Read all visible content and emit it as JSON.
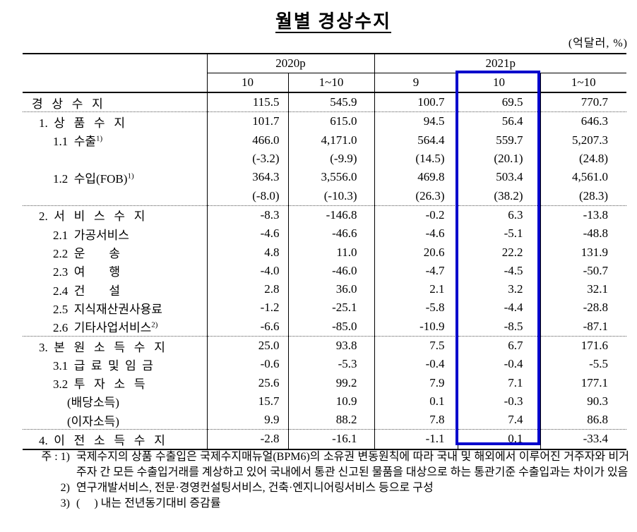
{
  "page": {
    "title": "월별 경상수지",
    "unit_label": "(억달러, %)"
  },
  "table": {
    "corner_label": "",
    "col_groups": [
      {
        "label": "2020p",
        "sub": [
          "10",
          "1~10"
        ]
      },
      {
        "label": "2021p",
        "sub": [
          "9",
          "10",
          "1~10"
        ]
      }
    ],
    "bold_value_columns": [
      0,
      3
    ],
    "highlight": {
      "group": "2021p",
      "column": "10",
      "color": "#0000cc"
    },
    "rows": [
      {
        "label": "경   상   수   지",
        "indent": 0,
        "bold": true,
        "sep": true,
        "values": [
          "115.5",
          "545.9",
          "100.7",
          "69.5",
          "770.7"
        ]
      },
      {
        "label": "1.  상   품   수   지",
        "indent": 1,
        "values": [
          "101.7",
          "615.0",
          "94.5",
          "56.4",
          "646.3"
        ]
      },
      {
        "label": "1.1  수출",
        "sup": "1)",
        "indent": 2,
        "values": [
          "466.0",
          "4,171.0",
          "564.4",
          "559.7",
          "5,207.3"
        ]
      },
      {
        "label": "",
        "indent": 2,
        "values": [
          "(-3.2)",
          "(-9.9)",
          "(14.5)",
          "(20.1)",
          "(24.8)"
        ]
      },
      {
        "label": "1.2  수입(FOB)",
        "sup": "1)",
        "indent": 2,
        "values": [
          "364.3",
          "3,556.0",
          "469.8",
          "503.4",
          "4,561.0"
        ]
      },
      {
        "label": "",
        "indent": 2,
        "sep": true,
        "values": [
          "(-8.0)",
          "(-10.3)",
          "(26.3)",
          "(38.2)",
          "(28.3)"
        ]
      },
      {
        "label": "2.  서   비   스   수   지",
        "indent": 1,
        "values": [
          "-8.3",
          "-146.8",
          "-0.2",
          "6.3",
          "-13.8"
        ]
      },
      {
        "label": "2.1  가공서비스",
        "indent": 2,
        "values": [
          "-4.6",
          "-46.6",
          "-4.6",
          "-5.1",
          "-48.8"
        ]
      },
      {
        "label": "2.2  운        송",
        "indent": 2,
        "values": [
          "4.8",
          "11.0",
          "20.6",
          "22.2",
          "131.9"
        ]
      },
      {
        "label": "2.3  여        행",
        "indent": 2,
        "values": [
          "-4.0",
          "-46.0",
          "-4.7",
          "-4.5",
          "-50.7"
        ]
      },
      {
        "label": "2.4  건        설",
        "indent": 2,
        "values": [
          "2.8",
          "36.0",
          "2.1",
          "3.2",
          "32.1"
        ]
      },
      {
        "label": "2.5  지식재산권사용료",
        "indent": 2,
        "values": [
          "-1.2",
          "-25.1",
          "-5.8",
          "-4.4",
          "-28.8"
        ]
      },
      {
        "label": "2.6  기타사업서비스",
        "sup": "2)",
        "indent": 2,
        "sep": true,
        "values": [
          "-6.6",
          "-85.0",
          "-10.9",
          "-8.5",
          "-87.1"
        ]
      },
      {
        "label": "3.  본   원   소   득   수   지",
        "indent": 1,
        "values": [
          "25.0",
          "93.8",
          "7.5",
          "6.7",
          "171.6"
        ]
      },
      {
        "label": "3.1  급  료  및  임  금",
        "indent": 2,
        "values": [
          "-0.6",
          "-5.3",
          "-0.4",
          "-0.4",
          "-5.5"
        ]
      },
      {
        "label": "3.2  투   자   소   득",
        "indent": 2,
        "values": [
          "25.6",
          "99.2",
          "7.9",
          "7.1",
          "177.1"
        ]
      },
      {
        "label": "(배당소득)",
        "indent": 3,
        "values": [
          "15.7",
          "10.9",
          "0.1",
          "-0.3",
          "90.3"
        ]
      },
      {
        "label": "(이자소득)",
        "indent": 3,
        "sep": true,
        "values": [
          "9.9",
          "88.2",
          "7.8",
          "7.4",
          "86.8"
        ]
      },
      {
        "label": "4.  이   전   소   득   수   지",
        "indent": 1,
        "values": [
          "-2.8",
          "-16.1",
          "-1.1",
          "0.1",
          "-33.4"
        ]
      }
    ]
  },
  "footnotes": [
    {
      "prefix": "주 : 1)",
      "text": "국제수지의 상품 수출입은 국제수지매뉴얼(BPM6)의 소유권 변동원칙에 따라 국내 및 해외에서 이루어진 거주자와 비거주자 간 모든 수출입거래를 계상하고 있어 국내에서 통관 신고된 물품을 대상으로 하는 통관기준 수출입과는 차이가 있음"
    },
    {
      "prefix": "2)",
      "text": "연구개발서비스, 전문·경영컨설팅서비스, 건축·엔지니어링서비스 등으로 구성"
    },
    {
      "prefix": "3)",
      "text": "(     ) 내는 전년동기대비 증감률"
    }
  ]
}
